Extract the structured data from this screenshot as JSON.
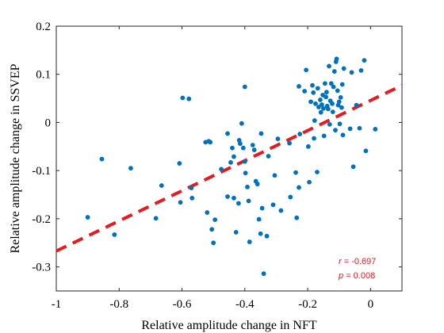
{
  "chart_data": {
    "type": "scatter",
    "xlabel": "Relative amplitude change in NFT",
    "ylabel": "Relative amplitude change in SSVEP",
    "xlim": [
      -1,
      0.1
    ],
    "ylim": [
      -0.35,
      0.2
    ],
    "x_ticks": [
      -1,
      -0.8,
      -0.6,
      -0.4,
      -0.2,
      0
    ],
    "x_tick_labels": [
      "-1",
      "-0.8",
      "-0.6",
      "-0.4",
      "-0.2",
      "0"
    ],
    "y_ticks": [
      0.2,
      0.1,
      0,
      -0.1,
      -0.2,
      -0.3
    ],
    "y_tick_labels": [
      "0.2",
      "0.1",
      "0",
      "-0.1",
      "-0.2",
      "-0.3"
    ],
    "grid": false,
    "point_color": "#0072bd",
    "fit_line": {
      "style": "dashed",
      "color": "#e8191f",
      "x": [
        -1,
        0.1
      ],
      "y": [
        -0.267,
        0.077
      ]
    },
    "annotations": {
      "r_label": "r",
      "r_value": "= -0.697",
      "p_label": "p",
      "p_value": "= 0.008"
    },
    "points": [
      {
        "x": -0.9,
        "y": -0.197
      },
      {
        "x": -0.855,
        "y": -0.076
      },
      {
        "x": -0.815,
        "y": -0.233
      },
      {
        "x": -0.763,
        "y": -0.095
      },
      {
        "x": -0.683,
        "y": -0.199
      },
      {
        "x": -0.665,
        "y": -0.131
      },
      {
        "x": -0.608,
        "y": -0.085
      },
      {
        "x": -0.605,
        "y": -0.166
      },
      {
        "x": -0.598,
        "y": 0.051
      },
      {
        "x": -0.578,
        "y": 0.049
      },
      {
        "x": -0.57,
        "y": -0.136
      },
      {
        "x": -0.568,
        "y": -0.157
      },
      {
        "x": -0.525,
        "y": -0.041
      },
      {
        "x": -0.52,
        "y": -0.187
      },
      {
        "x": -0.515,
        "y": -0.039
      },
      {
        "x": -0.51,
        "y": -0.041
      },
      {
        "x": -0.505,
        "y": -0.222
      },
      {
        "x": -0.5,
        "y": -0.25
      },
      {
        "x": -0.495,
        "y": -0.202
      },
      {
        "x": -0.475,
        "y": -0.097
      },
      {
        "x": -0.455,
        "y": -0.154
      },
      {
        "x": -0.455,
        "y": -0.023
      },
      {
        "x": -0.445,
        "y": -0.083
      },
      {
        "x": -0.44,
        "y": -0.053
      },
      {
        "x": -0.435,
        "y": -0.071
      },
      {
        "x": -0.435,
        "y": -0.157
      },
      {
        "x": -0.428,
        "y": -0.228
      },
      {
        "x": -0.42,
        "y": -0.168
      },
      {
        "x": -0.418,
        "y": -0.037
      },
      {
        "x": -0.415,
        "y": -0.044
      },
      {
        "x": -0.41,
        "y": -0.002
      },
      {
        "x": -0.405,
        "y": -0.053
      },
      {
        "x": -0.4,
        "y": 0.074
      },
      {
        "x": -0.4,
        "y": -0.081
      },
      {
        "x": -0.398,
        "y": -0.105
      },
      {
        "x": -0.392,
        "y": -0.134
      },
      {
        "x": -0.388,
        "y": -0.163
      },
      {
        "x": -0.385,
        "y": -0.248
      },
      {
        "x": -0.375,
        "y": -0.047
      },
      {
        "x": -0.37,
        "y": -0.057
      },
      {
        "x": -0.365,
        "y": -0.122
      },
      {
        "x": -0.36,
        "y": -0.128
      },
      {
        "x": -0.355,
        "y": -0.201
      },
      {
        "x": -0.35,
        "y": -0.231
      },
      {
        "x": -0.348,
        "y": -0.023
      },
      {
        "x": -0.345,
        "y": -0.178
      },
      {
        "x": -0.34,
        "y": -0.314
      },
      {
        "x": -0.33,
        "y": -0.236
      },
      {
        "x": -0.325,
        "y": -0.07
      },
      {
        "x": -0.31,
        "y": -0.171
      },
      {
        "x": -0.305,
        "y": -0.11
      },
      {
        "x": -0.295,
        "y": -0.034
      },
      {
        "x": -0.285,
        "y": -0.183
      },
      {
        "x": -0.258,
        "y": -0.043
      },
      {
        "x": -0.255,
        "y": -0.155
      },
      {
        "x": -0.238,
        "y": -0.104
      },
      {
        "x": -0.235,
        "y": -0.198
      },
      {
        "x": -0.228,
        "y": -0.135
      },
      {
        "x": -0.228,
        "y": 0.075
      },
      {
        "x": -0.225,
        "y": -0.024
      },
      {
        "x": -0.21,
        "y": 0.065
      },
      {
        "x": -0.205,
        "y": 0.109
      },
      {
        "x": -0.198,
        "y": -0.05
      },
      {
        "x": -0.195,
        "y": -0.124
      },
      {
        "x": -0.19,
        "y": 0.043
      },
      {
        "x": -0.185,
        "y": 0.077
      },
      {
        "x": -0.182,
        "y": 0.062
      },
      {
        "x": -0.18,
        "y": -0.033
      },
      {
        "x": -0.178,
        "y": 0.004
      },
      {
        "x": -0.175,
        "y": 0.039
      },
      {
        "x": -0.17,
        "y": -0.103
      },
      {
        "x": -0.168,
        "y": 0.071
      },
      {
        "x": -0.165,
        "y": 0.032
      },
      {
        "x": -0.16,
        "y": 0.047
      },
      {
        "x": -0.158,
        "y": 0.021
      },
      {
        "x": -0.155,
        "y": 0.037
      },
      {
        "x": -0.152,
        "y": 0.057
      },
      {
        "x": -0.15,
        "y": 0.029
      },
      {
        "x": -0.148,
        "y": -0.028
      },
      {
        "x": -0.145,
        "y": 0.081
      },
      {
        "x": -0.142,
        "y": 0.053
      },
      {
        "x": -0.14,
        "y": 0.063
      },
      {
        "x": -0.138,
        "y": 0.034
      },
      {
        "x": -0.135,
        "y": 0.028
      },
      {
        "x": -0.132,
        "y": 0.117
      },
      {
        "x": -0.13,
        "y": -0.004
      },
      {
        "x": -0.128,
        "y": 0.045
      },
      {
        "x": -0.125,
        "y": 0.081
      },
      {
        "x": -0.122,
        "y": 0.039
      },
      {
        "x": -0.12,
        "y": 0.022
      },
      {
        "x": -0.118,
        "y": 0.074
      },
      {
        "x": -0.115,
        "y": 0.106
      },
      {
        "x": -0.112,
        "y": -0.016
      },
      {
        "x": -0.11,
        "y": 0.126
      },
      {
        "x": -0.108,
        "y": 0.132
      },
      {
        "x": -0.105,
        "y": 0.066
      },
      {
        "x": -0.103,
        "y": 0.036
      },
      {
        "x": -0.1,
        "y": 0.043
      },
      {
        "x": -0.098,
        "y": -0.003
      },
      {
        "x": -0.095,
        "y": 0.052
      },
      {
        "x": -0.092,
        "y": 0.031
      },
      {
        "x": -0.09,
        "y": 0.079
      },
      {
        "x": -0.088,
        "y": -0.026
      },
      {
        "x": -0.085,
        "y": 0.112
      },
      {
        "x": -0.065,
        "y": -0.013
      },
      {
        "x": -0.06,
        "y": 0.104
      },
      {
        "x": -0.055,
        "y": -0.092
      },
      {
        "x": -0.045,
        "y": 0.036
      },
      {
        "x": -0.035,
        "y": -0.012
      },
      {
        "x": -0.03,
        "y": 0.108
      },
      {
        "x": -0.02,
        "y": 0.129
      },
      {
        "x": -0.015,
        "y": -0.059
      },
      {
        "x": 0.015,
        "y": -0.014
      }
    ]
  }
}
